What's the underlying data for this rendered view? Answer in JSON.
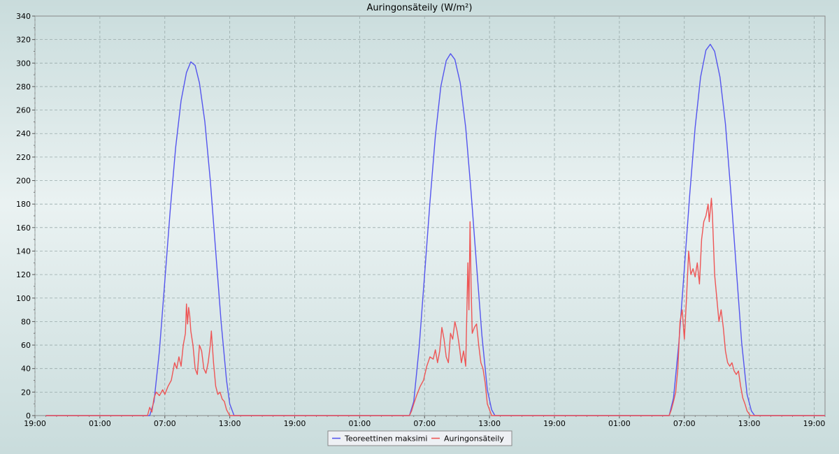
{
  "chart_data": {
    "type": "line",
    "title": "Auringonsäteily (W/m²)",
    "xlabel": "",
    "ylabel": "",
    "ylim": [
      0,
      340
    ],
    "yticks": [
      0,
      20,
      40,
      60,
      80,
      100,
      120,
      140,
      160,
      180,
      200,
      220,
      240,
      260,
      280,
      300,
      320,
      340
    ],
    "x_unit": "hours",
    "xlim": [
      19,
      92
    ],
    "xticks": [
      {
        "x": 19,
        "label": "19:00"
      },
      {
        "x": 25,
        "label": "01:00"
      },
      {
        "x": 31,
        "label": "07:00"
      },
      {
        "x": 37,
        "label": "13:00"
      },
      {
        "x": 43,
        "label": "19:00"
      },
      {
        "x": 49,
        "label": "01:00"
      },
      {
        "x": 55,
        "label": "07:00"
      },
      {
        "x": 61,
        "label": "13:00"
      },
      {
        "x": 67,
        "label": "19:00"
      },
      {
        "x": 73,
        "label": "01:00"
      },
      {
        "x": 79,
        "label": "07:00"
      },
      {
        "x": 85,
        "label": "13:00"
      },
      {
        "x": 91,
        "label": "19:00"
      }
    ],
    "grid": true,
    "legend_position": "bottom-center",
    "series": [
      {
        "name": "Teoreettinen maksimi",
        "color": "#5555ee",
        "points": [
          [
            20,
            0
          ],
          [
            29.6,
            0
          ],
          [
            30.0,
            12
          ],
          [
            30.5,
            55
          ],
          [
            31.0,
            115
          ],
          [
            31.5,
            175
          ],
          [
            32.0,
            228
          ],
          [
            32.5,
            268
          ],
          [
            33.0,
            292
          ],
          [
            33.4,
            301
          ],
          [
            33.8,
            298
          ],
          [
            34.2,
            283
          ],
          [
            34.7,
            250
          ],
          [
            35.2,
            200
          ],
          [
            35.7,
            140
          ],
          [
            36.2,
            80
          ],
          [
            36.7,
            30
          ],
          [
            37.0,
            10
          ],
          [
            37.4,
            0
          ],
          [
            53.6,
            0
          ],
          [
            54.0,
            12
          ],
          [
            54.5,
            58
          ],
          [
            55.0,
            120
          ],
          [
            55.5,
            182
          ],
          [
            56.0,
            238
          ],
          [
            56.5,
            280
          ],
          [
            57.0,
            302
          ],
          [
            57.4,
            308
          ],
          [
            57.8,
            303
          ],
          [
            58.3,
            283
          ],
          [
            58.8,
            245
          ],
          [
            59.3,
            190
          ],
          [
            59.8,
            128
          ],
          [
            60.3,
            68
          ],
          [
            60.8,
            22
          ],
          [
            61.2,
            5
          ],
          [
            61.5,
            0
          ],
          [
            77.6,
            0
          ],
          [
            78.0,
            15
          ],
          [
            78.5,
            62
          ],
          [
            79.0,
            125
          ],
          [
            79.5,
            188
          ],
          [
            80.0,
            245
          ],
          [
            80.5,
            288
          ],
          [
            81.0,
            311
          ],
          [
            81.4,
            316
          ],
          [
            81.8,
            310
          ],
          [
            82.3,
            288
          ],
          [
            82.8,
            248
          ],
          [
            83.3,
            190
          ],
          [
            83.8,
            125
          ],
          [
            84.3,
            62
          ],
          [
            84.8,
            18
          ],
          [
            85.2,
            4
          ],
          [
            85.5,
            0
          ],
          [
            92,
            0
          ]
        ]
      },
      {
        "name": "Auringonsäteily",
        "color": "#ee5555",
        "points": [
          [
            20,
            0
          ],
          [
            29.4,
            0
          ],
          [
            29.6,
            7
          ],
          [
            29.8,
            3
          ],
          [
            30.0,
            15
          ],
          [
            30.2,
            20
          ],
          [
            30.5,
            17
          ],
          [
            30.8,
            22
          ],
          [
            31.0,
            18
          ],
          [
            31.3,
            25
          ],
          [
            31.6,
            30
          ],
          [
            31.9,
            45
          ],
          [
            32.1,
            40
          ],
          [
            32.3,
            50
          ],
          [
            32.5,
            42
          ],
          [
            32.7,
            60
          ],
          [
            32.9,
            70
          ],
          [
            33.0,
            95
          ],
          [
            33.1,
            78
          ],
          [
            33.2,
            92
          ],
          [
            33.3,
            85
          ],
          [
            33.4,
            72
          ],
          [
            33.6,
            60
          ],
          [
            33.8,
            40
          ],
          [
            34.0,
            35
          ],
          [
            34.2,
            60
          ],
          [
            34.4,
            55
          ],
          [
            34.6,
            40
          ],
          [
            34.8,
            36
          ],
          [
            35.0,
            45
          ],
          [
            35.2,
            60
          ],
          [
            35.3,
            72
          ],
          [
            35.5,
            45
          ],
          [
            35.7,
            25
          ],
          [
            35.9,
            18
          ],
          [
            36.1,
            20
          ],
          [
            36.3,
            14
          ],
          [
            36.5,
            12
          ],
          [
            36.7,
            5
          ],
          [
            37.0,
            0
          ],
          [
            53.6,
            0
          ],
          [
            53.8,
            4
          ],
          [
            54.0,
            10
          ],
          [
            54.3,
            18
          ],
          [
            54.6,
            25
          ],
          [
            54.9,
            30
          ],
          [
            55.2,
            42
          ],
          [
            55.5,
            50
          ],
          [
            55.8,
            48
          ],
          [
            56.0,
            56
          ],
          [
            56.2,
            45
          ],
          [
            56.4,
            55
          ],
          [
            56.6,
            75
          ],
          [
            56.8,
            65
          ],
          [
            57.0,
            50
          ],
          [
            57.2,
            45
          ],
          [
            57.4,
            70
          ],
          [
            57.6,
            65
          ],
          [
            57.8,
            80
          ],
          [
            58.0,
            72
          ],
          [
            58.2,
            60
          ],
          [
            58.4,
            45
          ],
          [
            58.6,
            55
          ],
          [
            58.8,
            42
          ],
          [
            59.0,
            130
          ],
          [
            59.1,
            90
          ],
          [
            59.2,
            165
          ],
          [
            59.3,
            110
          ],
          [
            59.4,
            70
          ],
          [
            59.6,
            75
          ],
          [
            59.8,
            78
          ],
          [
            60.0,
            60
          ],
          [
            60.2,
            45
          ],
          [
            60.4,
            40
          ],
          [
            60.6,
            28
          ],
          [
            60.8,
            10
          ],
          [
            61.2,
            0
          ],
          [
            77.6,
            0
          ],
          [
            77.8,
            5
          ],
          [
            78.0,
            12
          ],
          [
            78.2,
            20
          ],
          [
            78.4,
            40
          ],
          [
            78.6,
            80
          ],
          [
            78.8,
            90
          ],
          [
            79.0,
            65
          ],
          [
            79.2,
            100
          ],
          [
            79.4,
            140
          ],
          [
            79.6,
            120
          ],
          [
            79.8,
            125
          ],
          [
            80.0,
            118
          ],
          [
            80.2,
            130
          ],
          [
            80.4,
            112
          ],
          [
            80.6,
            150
          ],
          [
            80.8,
            165
          ],
          [
            81.0,
            170
          ],
          [
            81.2,
            180
          ],
          [
            81.3,
            165
          ],
          [
            81.5,
            185
          ],
          [
            81.6,
            170
          ],
          [
            81.8,
            120
          ],
          [
            82.0,
            100
          ],
          [
            82.2,
            80
          ],
          [
            82.4,
            90
          ],
          [
            82.6,
            75
          ],
          [
            82.8,
            55
          ],
          [
            83.0,
            45
          ],
          [
            83.2,
            42
          ],
          [
            83.4,
            45
          ],
          [
            83.6,
            38
          ],
          [
            83.8,
            35
          ],
          [
            84.0,
            38
          ],
          [
            84.2,
            25
          ],
          [
            84.4,
            15
          ],
          [
            84.6,
            10
          ],
          [
            84.8,
            4
          ],
          [
            85.1,
            0
          ],
          [
            92,
            0
          ]
        ]
      }
    ]
  }
}
